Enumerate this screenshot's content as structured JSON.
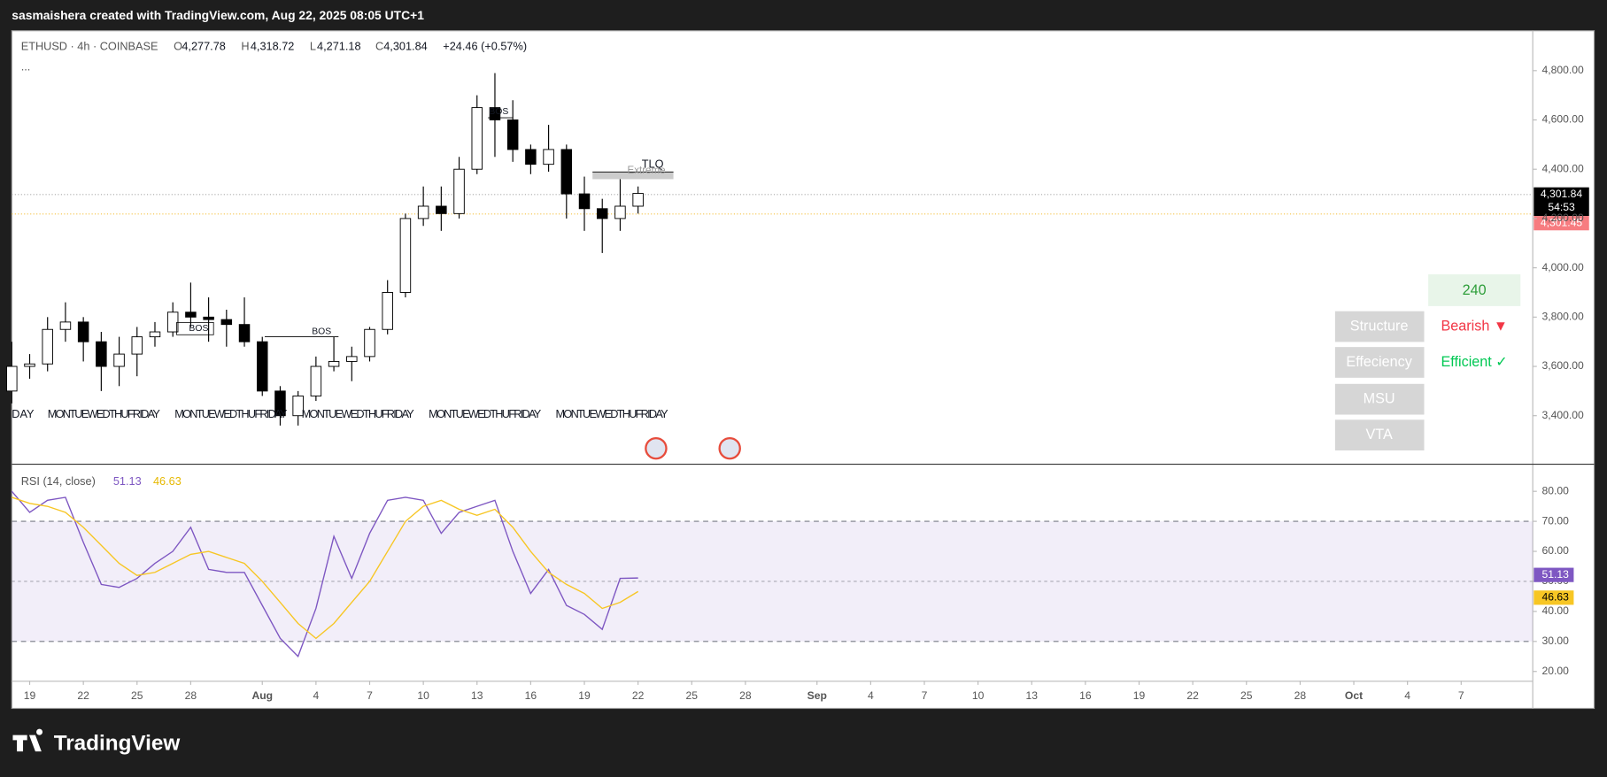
{
  "header": {
    "title": "sasmaishera created with TradingView.com, Aug 22, 2025 08:05 UTC+1",
    "symbol": "ETHUSD · 4h · COINBASE",
    "ohlc": [
      {
        "key": "O",
        "value": "4,277.78"
      },
      {
        "key": "H",
        "value": "4,318.72"
      },
      {
        "key": "L",
        "value": "4,271.18"
      },
      {
        "key": "C",
        "value": "4,301.84"
      }
    ],
    "change": "+24.46 (+0.57%)",
    "more": "...",
    "last_price": "4,301.84",
    "countdown": "54:53",
    "bid_price": "4,301.45"
  },
  "annotations": [
    "BOS",
    "BOS",
    "BOS",
    "TLQ",
    "Extreme"
  ],
  "day_labels": [
    "DAY",
    "MONTUEWEDTHUFRIDAY",
    "MONTUEWEDTHUFRIDAY",
    "MONTUEWEDTHUFRIDAY",
    "MONTUEWEDTHUFRIDAY",
    "MONTUEWEDTHUFRIDAY"
  ],
  "widget": {
    "timeframe": "240",
    "rows": [
      {
        "label": "Structure",
        "value": "Bearish ▼"
      },
      {
        "label": "Effeciency",
        "value": "Efficient ✓"
      },
      {
        "label": "MSU"
      },
      {
        "label": "VTA"
      }
    ]
  },
  "footer": {
    "logo": "TradingView"
  },
  "chart_data": [
    {
      "type": "candlestick",
      "up_color": "#ffffff",
      "down_color": "#000000",
      "border_color": "#000000",
      "x": [
        "2025-07-18",
        "2025-07-19",
        "2025-07-20",
        "2025-07-21",
        "2025-07-22",
        "2025-07-23",
        "2025-07-24",
        "2025-07-25",
        "2025-07-26",
        "2025-07-27",
        "2025-07-28",
        "2025-07-29",
        "2025-07-30",
        "2025-07-31",
        "2025-08-01",
        "2025-08-02",
        "2025-08-03",
        "2025-08-04",
        "2025-08-05",
        "2025-08-06",
        "2025-08-07",
        "2025-08-08",
        "2025-08-09",
        "2025-08-10",
        "2025-08-11",
        "2025-08-12",
        "2025-08-13",
        "2025-08-14",
        "2025-08-15",
        "2025-08-16",
        "2025-08-17",
        "2025-08-18",
        "2025-08-19",
        "2025-08-20",
        "2025-08-21",
        "2025-08-22"
      ],
      "open": [
        3500,
        3600,
        3610,
        3750,
        3780,
        3700,
        3600,
        3650,
        3720,
        3740,
        3820,
        3800,
        3790,
        3770,
        3700,
        3500,
        3400,
        3480,
        3600,
        3620,
        3640,
        3750,
        3900,
        4200,
        4250,
        4220,
        4400,
        4650,
        4600,
        4480,
        4420,
        4480,
        4300,
        4240,
        4200,
        4250
      ],
      "high": [
        3700,
        3650,
        3800,
        3860,
        3800,
        3740,
        3720,
        3760,
        3780,
        3860,
        3940,
        3880,
        3830,
        3880,
        3720,
        3520,
        3500,
        3640,
        3720,
        3680,
        3760,
        3950,
        4220,
        4330,
        4330,
        4450,
        4700,
        4790,
        4680,
        4500,
        4580,
        4500,
        4370,
        4280,
        4370,
        4330
      ],
      "low": [
        3450,
        3550,
        3580,
        3700,
        3620,
        3500,
        3520,
        3560,
        3680,
        3720,
        3760,
        3700,
        3680,
        3680,
        3480,
        3360,
        3360,
        3460,
        3580,
        3540,
        3620,
        3730,
        3880,
        4170,
        4150,
        4200,
        4380,
        4450,
        4430,
        4380,
        4390,
        4200,
        4150,
        4060,
        4150,
        4220
      ],
      "close": [
        3600,
        3610,
        3750,
        3780,
        3700,
        3600,
        3650,
        3720,
        3740,
        3820,
        3800,
        3790,
        3770,
        3700,
        3500,
        3400,
        3480,
        3600,
        3620,
        3640,
        3750,
        3900,
        4200,
        4250,
        4220,
        4400,
        4650,
        4600,
        4480,
        4420,
        4480,
        4300,
        4240,
        4200,
        4250,
        4301.84
      ],
      "xlim": [
        "2025-07-18",
        "2025-10-11"
      ],
      "xticks": [
        {
          "value": "2025-07-19",
          "label": "19"
        },
        {
          "value": "2025-07-22",
          "label": "22"
        },
        {
          "value": "2025-07-25",
          "label": "25"
        },
        {
          "value": "2025-07-28",
          "label": "28"
        },
        {
          "value": "2025-08-01",
          "label": "Aug"
        },
        {
          "value": "2025-08-04",
          "label": "4"
        },
        {
          "value": "2025-08-07",
          "label": "7"
        },
        {
          "value": "2025-08-10",
          "label": "10"
        },
        {
          "value": "2025-08-13",
          "label": "13"
        },
        {
          "value": "2025-08-16",
          "label": "16"
        },
        {
          "value": "2025-08-19",
          "label": "19"
        },
        {
          "value": "2025-08-22",
          "label": "22"
        },
        {
          "value": "2025-08-25",
          "label": "25"
        },
        {
          "value": "2025-08-28",
          "label": "28"
        },
        {
          "value": "2025-09-01",
          "label": "Sep"
        },
        {
          "value": "2025-09-04",
          "label": "4"
        },
        {
          "value": "2025-09-07",
          "label": "7"
        },
        {
          "value": "2025-09-10",
          "label": "10"
        },
        {
          "value": "2025-09-13",
          "label": "13"
        },
        {
          "value": "2025-09-16",
          "label": "16"
        },
        {
          "value": "2025-09-19",
          "label": "19"
        },
        {
          "value": "2025-09-22",
          "label": "22"
        },
        {
          "value": "2025-09-25",
          "label": "25"
        },
        {
          "value": "2025-09-28",
          "label": "28"
        },
        {
          "value": "2025-10-01",
          "label": "Oct"
        },
        {
          "value": "2025-10-04",
          "label": "4"
        },
        {
          "value": "2025-10-07",
          "label": "7"
        }
      ],
      "ylim": [
        3205,
        4962
      ],
      "yticks": [
        {
          "value": 3400,
          "label": "3,400.00"
        },
        {
          "value": 3600,
          "label": "3,600.00"
        },
        {
          "value": 3800,
          "label": "3,800.00"
        },
        {
          "value": 4000,
          "label": "4,000.00"
        },
        {
          "value": 4200,
          "label": "4,200.00"
        },
        {
          "value": 4400,
          "label": "4,400.00"
        },
        {
          "value": 4600,
          "label": "4,600.00"
        },
        {
          "value": 4800,
          "label": "4,800.00"
        }
      ]
    },
    {
      "type": "line",
      "title": "RSI (14, close)",
      "x": [
        "2025-07-18",
        "2025-07-19",
        "2025-07-20",
        "2025-07-21",
        "2025-07-22",
        "2025-07-23",
        "2025-07-24",
        "2025-07-25",
        "2025-07-26",
        "2025-07-27",
        "2025-07-28",
        "2025-07-29",
        "2025-07-30",
        "2025-07-31",
        "2025-08-01",
        "2025-08-02",
        "2025-08-03",
        "2025-08-04",
        "2025-08-05",
        "2025-08-06",
        "2025-08-07",
        "2025-08-08",
        "2025-08-09",
        "2025-08-10",
        "2025-08-11",
        "2025-08-12",
        "2025-08-13",
        "2025-08-14",
        "2025-08-15",
        "2025-08-16",
        "2025-08-17",
        "2025-08-18",
        "2025-08-19",
        "2025-08-20",
        "2025-08-21",
        "2025-08-22"
      ],
      "series": [
        {
          "color": "#7e57c2",
          "values": [
            80,
            73,
            77,
            78,
            63,
            49,
            48,
            51,
            56,
            60,
            68,
            54,
            53,
            53,
            42,
            31,
            25,
            41,
            65,
            51,
            66,
            77,
            78,
            77,
            66,
            73,
            75,
            77,
            60,
            46,
            54,
            42,
            39,
            34,
            51,
            51.13
          ]
        },
        {
          "color": "#f7c624",
          "values": [
            78,
            76,
            75,
            73,
            68,
            62,
            56,
            52,
            53,
            56,
            59,
            60,
            58,
            56,
            50,
            43,
            36,
            31,
            36,
            43,
            50,
            60,
            70,
            75,
            77,
            74,
            72,
            74,
            68,
            60,
            53,
            49,
            46,
            41,
            43,
            46.63
          ]
        }
      ],
      "bands": {
        "upper": 70,
        "middle": 50,
        "lower": 30
      },
      "band_color": "#7e57c2",
      "ylim": [
        16.9,
        88.5
      ],
      "yticks": [
        {
          "value": 20,
          "label": "20.00"
        },
        {
          "value": 30,
          "label": "30.00"
        },
        {
          "value": 40,
          "label": "40.00"
        },
        {
          "value": 50,
          "label": "50.00"
        },
        {
          "value": 60,
          "label": "60.00"
        },
        {
          "value": 70,
          "label": "70.00"
        },
        {
          "value": 80,
          "label": "80.00"
        }
      ]
    }
  ]
}
